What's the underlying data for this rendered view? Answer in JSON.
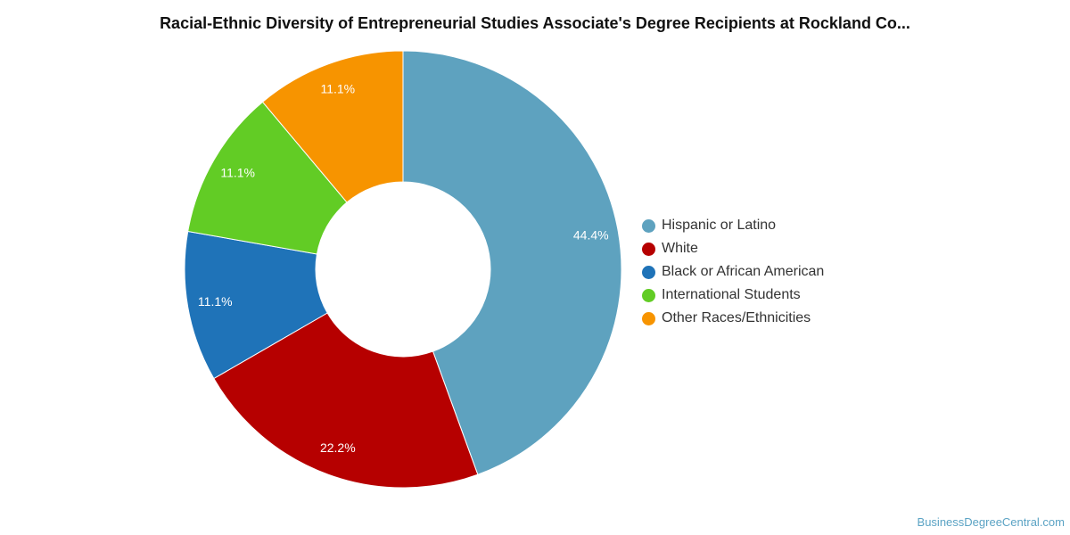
{
  "chart_data": {
    "type": "pie",
    "title": "Racial-Ethnic Diversity of Entrepreneurial Studies Associate's Degree Recipients at Rockland Co...",
    "donut": true,
    "legend_position": "right",
    "slices": [
      {
        "label": "Hispanic or Latino",
        "value": 44.4,
        "value_label": "44.4%",
        "color": "#5ea2bf"
      },
      {
        "label": "White",
        "value": 22.2,
        "value_label": "22.2%",
        "color": "#b60000"
      },
      {
        "label": "Black or African American",
        "value": 11.1,
        "value_label": "11.1%",
        "color": "#1f73b8"
      },
      {
        "label": "International Students",
        "value": 11.1,
        "value_label": "11.1%",
        "color": "#62cc25"
      },
      {
        "label": "Other Races/Ethnicities",
        "value": 11.1,
        "value_label": "11.1%",
        "color": "#f79400"
      }
    ]
  },
  "watermark": "BusinessDegreeCentral.com"
}
